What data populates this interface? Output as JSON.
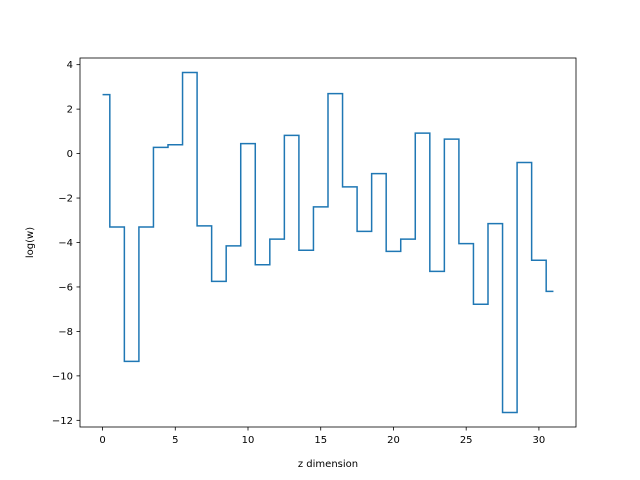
{
  "chart_data": {
    "type": "line",
    "drawstyle": "steps-mid",
    "xlabel": "z dimension",
    "ylabel": "log(w)",
    "xlim": [
      -1.55,
      32.55
    ],
    "ylim": [
      -12.3,
      4.3
    ],
    "xticks": [
      0,
      5,
      10,
      15,
      20,
      25,
      30
    ],
    "yticks": [
      -12,
      -10,
      -8,
      -6,
      -4,
      -2,
      0,
      2,
      4
    ],
    "grid": false,
    "colors": {
      "line": "#1f77b4"
    },
    "series": [
      {
        "x": [
          0,
          1,
          2,
          3,
          4,
          5,
          6,
          7,
          8,
          9,
          10,
          11,
          12,
          13,
          14,
          15,
          16,
          17,
          18,
          19,
          20,
          21,
          22,
          23,
          24,
          25,
          26,
          27,
          28,
          29,
          30,
          31
        ],
        "values": [
          2.65,
          -3.3,
          -9.35,
          -3.3,
          0.28,
          0.4,
          3.65,
          -3.25,
          -5.75,
          -4.15,
          0.45,
          -5.0,
          -3.85,
          0.82,
          -4.35,
          -2.4,
          2.7,
          -1.5,
          -3.5,
          -0.9,
          -4.4,
          -3.85,
          0.92,
          -5.3,
          0.65,
          -4.05,
          -6.78,
          -3.15,
          -11.65,
          -0.4,
          -4.8,
          -6.2
        ]
      }
    ]
  }
}
